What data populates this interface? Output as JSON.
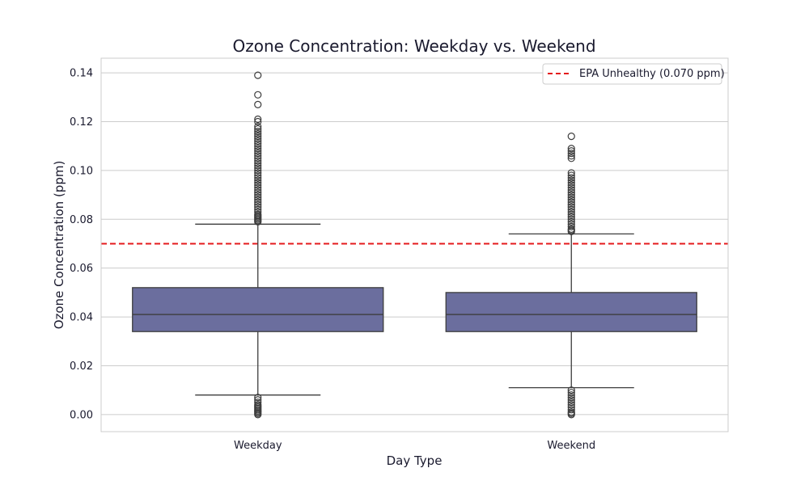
{
  "chart_data": {
    "type": "box",
    "title": "Ozone Concentration: Weekday vs. Weekend",
    "xlabel": "Day Type",
    "ylabel": "Ozone Concentration (ppm)",
    "ylim": [
      -0.007,
      0.146
    ],
    "yticks": [
      0.0,
      0.02,
      0.04,
      0.06,
      0.08,
      0.1,
      0.12,
      0.14
    ],
    "ytick_labels": [
      "0.00",
      "0.02",
      "0.04",
      "0.06",
      "0.08",
      "0.10",
      "0.12",
      "0.14"
    ],
    "grid": "horizontal",
    "categories": [
      "Weekday",
      "Weekend"
    ],
    "boxes": [
      {
        "category": "Weekday",
        "whisker_low": 0.008,
        "q1": 0.034,
        "median": 0.041,
        "q3": 0.052,
        "whisker_high": 0.078,
        "outliers": [
          0.0,
          0.0005,
          0.001,
          0.0015,
          0.002,
          0.0025,
          0.003,
          0.0035,
          0.004,
          0.005,
          0.006,
          0.007,
          0.079,
          0.0795,
          0.08,
          0.0805,
          0.081,
          0.0815,
          0.082,
          0.083,
          0.084,
          0.085,
          0.086,
          0.087,
          0.088,
          0.089,
          0.09,
          0.091,
          0.092,
          0.093,
          0.094,
          0.095,
          0.096,
          0.097,
          0.098,
          0.099,
          0.1,
          0.101,
          0.102,
          0.103,
          0.104,
          0.105,
          0.106,
          0.107,
          0.108,
          0.109,
          0.11,
          0.111,
          0.112,
          0.113,
          0.114,
          0.115,
          0.116,
          0.117,
          0.118,
          0.12,
          0.121,
          0.127,
          0.131,
          0.139
        ]
      },
      {
        "category": "Weekend",
        "whisker_low": 0.011,
        "q1": 0.034,
        "median": 0.041,
        "q3": 0.05,
        "whisker_high": 0.074,
        "outliers": [
          0.0,
          0.0005,
          0.001,
          0.002,
          0.003,
          0.004,
          0.005,
          0.006,
          0.007,
          0.008,
          0.009,
          0.01,
          0.075,
          0.0755,
          0.076,
          0.077,
          0.078,
          0.079,
          0.08,
          0.081,
          0.082,
          0.083,
          0.084,
          0.085,
          0.086,
          0.087,
          0.088,
          0.089,
          0.09,
          0.091,
          0.092,
          0.093,
          0.094,
          0.095,
          0.096,
          0.097,
          0.098,
          0.099,
          0.105,
          0.106,
          0.107,
          0.108,
          0.109,
          0.114
        ]
      }
    ],
    "reference_line": {
      "y": 0.07,
      "label": "EPA Unhealthy (0.070 ppm)",
      "color": "#e41a1c",
      "style": "dashed"
    },
    "legend": {
      "placement": "top-right",
      "entries": [
        "EPA Unhealthy (0.070 ppm)"
      ]
    },
    "colors": {
      "box_fill": "#6b6e9e",
      "box_edge": "#3d3d3d",
      "grid": "#cccccc",
      "frame": "#cccccc"
    }
  }
}
